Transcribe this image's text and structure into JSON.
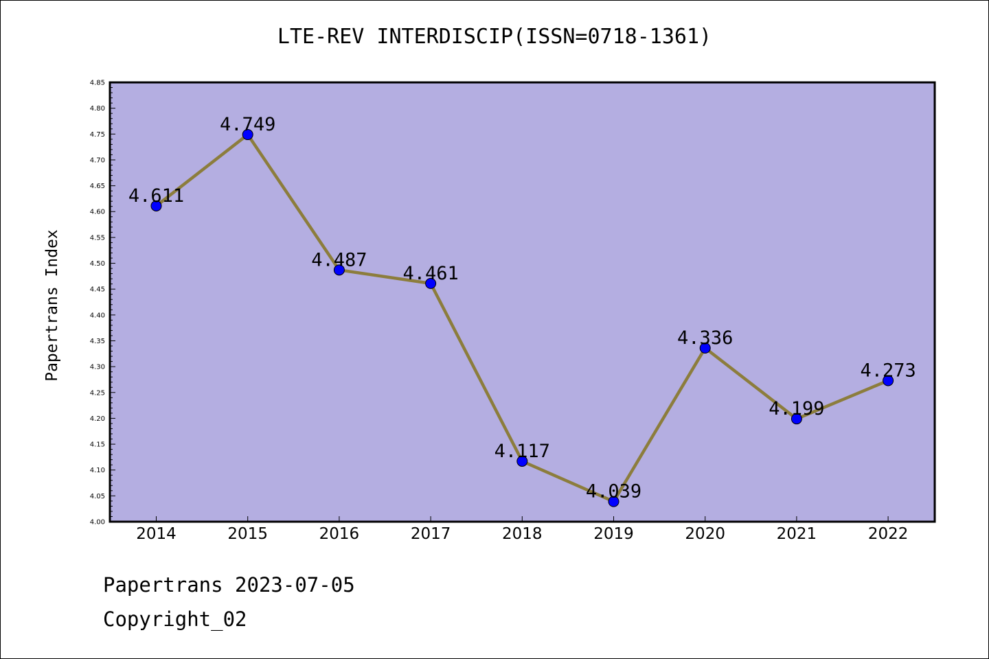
{
  "chart_data": {
    "type": "line",
    "title": "LTE-REV INTERDISCIP(ISSN=0718-1361)",
    "xlabel": "",
    "ylabel": "Papertrans Index",
    "categories": [
      "2014",
      "2015",
      "2016",
      "2017",
      "2018",
      "2019",
      "2020",
      "2021",
      "2022"
    ],
    "series": [
      {
        "values": [
          4.611,
          4.749,
          4.487,
          4.461,
          4.117,
          4.039,
          4.336,
          4.199,
          4.273
        ],
        "labels": [
          "4.611",
          "4.749",
          "4.487",
          "4.461",
          "4.117",
          "4.039",
          "4.336",
          "4.199",
          "4.273"
        ]
      }
    ],
    "ylim": [
      4.0,
      4.85
    ],
    "yticks": [
      "4.00",
      "4.05",
      "4.10",
      "4.15",
      "4.20",
      "4.25",
      "4.30",
      "4.35",
      "4.40",
      "4.45",
      "4.50",
      "4.55",
      "4.60",
      "4.65",
      "4.70",
      "4.75",
      "4.80",
      "4.85"
    ],
    "grid": false,
    "colors": {
      "plot_background": "#b4aee1",
      "line": "#8c7d3c",
      "marker": "#0000ff"
    }
  },
  "footer": {
    "line1": "Papertrans 2023-07-05",
    "line2": "Copyright_02"
  }
}
